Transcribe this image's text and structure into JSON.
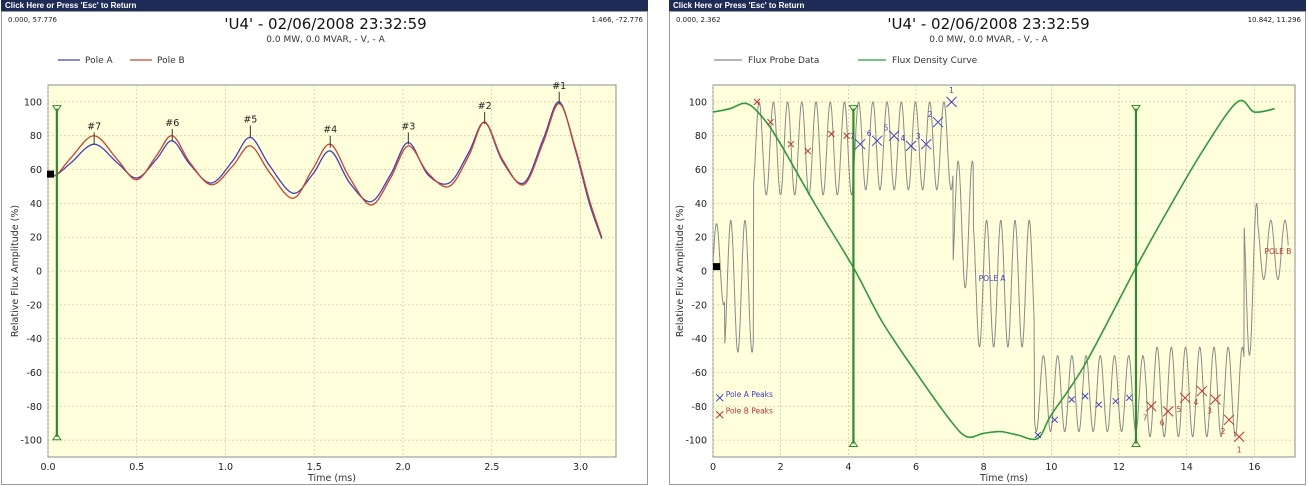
{
  "return_bar": "Click Here or Press 'Esc' to Return",
  "chart_data": [
    {
      "type": "line",
      "title": "'U4' - 02/06/2008 23:32:59",
      "subtitle": "0.0 MW,  0.0 MVAR, - V, - A",
      "corner_left": "0.000, 57.776",
      "corner_right": "1.466, -72.776",
      "xlabel": "Time (ms)",
      "ylabel": "Relative Flux Amplitude (%)",
      "xlim": [
        0,
        3.2
      ],
      "ylim": [
        -110,
        110
      ],
      "xticks": [
        "0.0",
        "0.5",
        "1.0",
        "1.5",
        "2.0",
        "2.5",
        "3.0"
      ],
      "yticks": [
        "100",
        "80",
        "60",
        "40",
        "20",
        "0",
        "-20",
        "-40",
        "-60",
        "-80",
        "-100"
      ],
      "grid": true,
      "legend_position": "top-left",
      "plot_background": "#ffffdc",
      "cursor": {
        "x": 0.05,
        "color": "#2e8b2e"
      },
      "series": [
        {
          "name": "Pole A",
          "color": "#4040c0",
          "x": [
            0.0,
            0.05,
            0.13,
            0.26,
            0.39,
            0.5,
            0.61,
            0.7,
            0.8,
            0.92,
            1.04,
            1.14,
            1.25,
            1.38,
            1.49,
            1.59,
            1.7,
            1.82,
            1.93,
            2.03,
            2.14,
            2.26,
            2.37,
            2.46,
            2.56,
            2.68,
            2.79,
            2.88,
            2.97,
            3.05,
            3.12
          ],
          "y": [
            56,
            57,
            64,
            75,
            64,
            55,
            66,
            77,
            63,
            52,
            65,
            79,
            62,
            46,
            57,
            71,
            52,
            41,
            57,
            76,
            57,
            52,
            70,
            88,
            65,
            52,
            78,
            100,
            72,
            40,
            19
          ]
        },
        {
          "name": "Pole B",
          "color": "#d04030",
          "x": [
            0.0,
            0.05,
            0.13,
            0.26,
            0.39,
            0.5,
            0.61,
            0.7,
            0.8,
            0.92,
            1.04,
            1.14,
            1.25,
            1.38,
            1.49,
            1.59,
            1.7,
            1.82,
            1.93,
            2.03,
            2.14,
            2.26,
            2.37,
            2.46,
            2.56,
            2.68,
            2.79,
            2.88,
            2.97,
            3.05,
            3.12
          ],
          "y": [
            56,
            57,
            67,
            80,
            66,
            54,
            68,
            80,
            64,
            51,
            62,
            74,
            58,
            43,
            60,
            75,
            55,
            39,
            55,
            74,
            58,
            50,
            68,
            88,
            66,
            51,
            76,
            99,
            73,
            42,
            20
          ]
        }
      ],
      "annotations": [
        {
          "label": "#7",
          "x": 0.26,
          "y": 82
        },
        {
          "label": "#6",
          "x": 0.7,
          "y": 84
        },
        {
          "label": "#5",
          "x": 1.14,
          "y": 86
        },
        {
          "label": "#4",
          "x": 1.59,
          "y": 80
        },
        {
          "label": "#3",
          "x": 2.03,
          "y": 82
        },
        {
          "label": "#2",
          "x": 2.46,
          "y": 94
        },
        {
          "label": "#1",
          "x": 2.88,
          "y": 106
        }
      ]
    },
    {
      "type": "line",
      "title": "'U4' - 02/06/2008 23:32:59",
      "subtitle": "0.0 MW,  0.0 MVAR, - V, - A",
      "corner_left": "0.000, 2.362",
      "corner_right": "10.842, 11.296",
      "xlabel": "Time (ms)",
      "ylabel": "Relative Flux Amplitude (%)",
      "xlim": [
        0,
        17.2
      ],
      "ylim": [
        -110,
        110
      ],
      "xticks": [
        "0",
        "2",
        "4",
        "6",
        "8",
        "10",
        "12",
        "14",
        "16"
      ],
      "yticks": [
        "100",
        "80",
        "60",
        "40",
        "20",
        "0",
        "-20",
        "-40",
        "-60",
        "-80",
        "-100"
      ],
      "grid": true,
      "legend_position": "top-left",
      "plot_background": "#ffffdc",
      "cursors": [
        {
          "x": 4.15,
          "color": "#2e8b2e"
        },
        {
          "x": 12.5,
          "color": "#2e8b2e"
        }
      ],
      "series": [
        {
          "name": "Flux Probe Data",
          "color": "#8a8a8a",
          "style": "oscillating"
        },
        {
          "name": "Flux Density Curve",
          "color": "#2e9a3e",
          "x": [
            0,
            0.5,
            1.0,
            1.5,
            2.0,
            3.0,
            4.15,
            5.0,
            6.0,
            7.0,
            7.5,
            8.0,
            8.5,
            9.0,
            9.6,
            10.0,
            11.0,
            12.5,
            13.5,
            14.5,
            15.5,
            16.0,
            16.6
          ],
          "y": [
            94,
            96,
            99,
            90,
            75,
            40,
            2,
            -30,
            -60,
            -88,
            -98,
            -96,
            -95,
            -97,
            -99,
            -85,
            -55,
            2,
            38,
            72,
            100,
            94,
            96
          ]
        }
      ],
      "markers": {
        "pole_a_label": "Pole A Peaks",
        "pole_b_label": "Pole B Peaks",
        "pole_a_text": "POLE A",
        "pole_b_text": "POLE B",
        "pole_a_color": "#4040c8",
        "pole_b_color": "#c83030",
        "pole_a_peaks": [
          {
            "x": 4.35,
            "y": 75,
            "label": "7"
          },
          {
            "x": 4.85,
            "y": 77,
            "label": "6"
          },
          {
            "x": 5.35,
            "y": 80,
            "label": "5"
          },
          {
            "x": 5.85,
            "y": 74,
            "label": "4"
          },
          {
            "x": 6.3,
            "y": 75,
            "label": "3"
          },
          {
            "x": 6.65,
            "y": 88,
            "label": "2"
          },
          {
            "x": 7.05,
            "y": 100,
            "label": "1"
          },
          {
            "x": 9.6,
            "y": -97,
            "label": ""
          },
          {
            "x": 10.1,
            "y": -88,
            "label": ""
          },
          {
            "x": 10.6,
            "y": -76,
            "label": ""
          },
          {
            "x": 11.0,
            "y": -74,
            "label": ""
          },
          {
            "x": 11.4,
            "y": -79,
            "label": ""
          },
          {
            "x": 11.9,
            "y": -77,
            "label": ""
          },
          {
            "x": 12.3,
            "y": -75,
            "label": ""
          }
        ],
        "pole_b_peaks": [
          {
            "x": 1.3,
            "y": 100,
            "label": ""
          },
          {
            "x": 1.7,
            "y": 88,
            "label": ""
          },
          {
            "x": 2.3,
            "y": 75,
            "label": ""
          },
          {
            "x": 2.8,
            "y": 71,
            "label": ""
          },
          {
            "x": 3.5,
            "y": 81,
            "label": ""
          },
          {
            "x": 3.95,
            "y": 80,
            "label": ""
          },
          {
            "x": 12.95,
            "y": -80,
            "label": "7"
          },
          {
            "x": 13.45,
            "y": -83,
            "label": "6"
          },
          {
            "x": 13.95,
            "y": -75,
            "label": "5"
          },
          {
            "x": 14.45,
            "y": -71,
            "label": "4"
          },
          {
            "x": 14.85,
            "y": -76,
            "label": "3"
          },
          {
            "x": 15.25,
            "y": -88,
            "label": "2"
          },
          {
            "x": 15.55,
            "y": -98,
            "label": "1"
          }
        ]
      }
    }
  ]
}
